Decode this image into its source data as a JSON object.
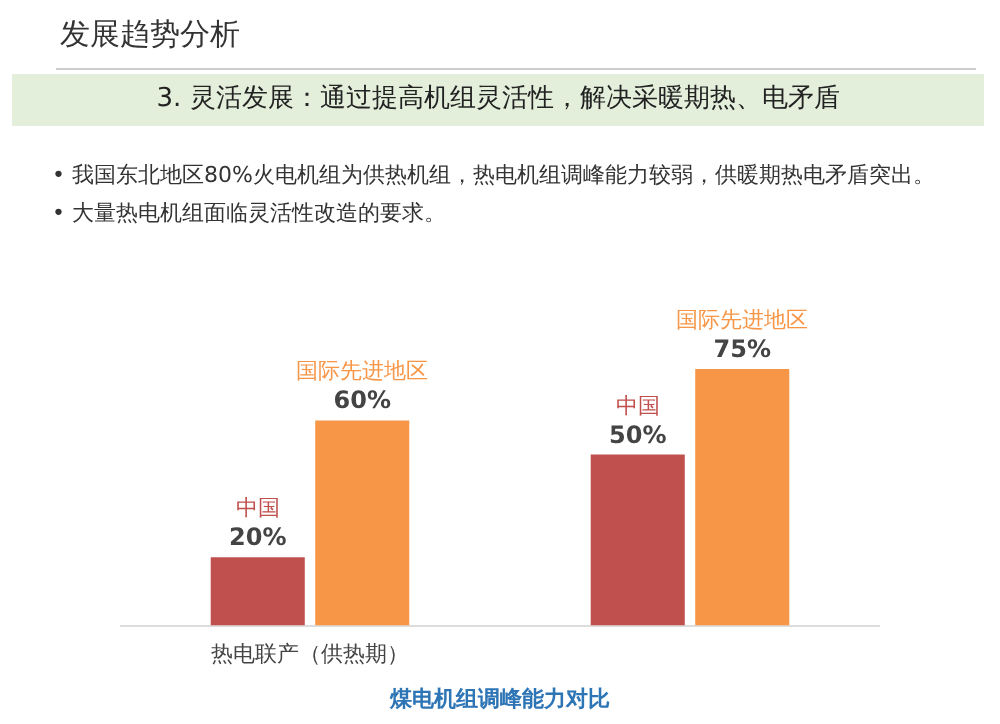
{
  "chart_data": {
    "type": "bar",
    "title": "发展趋势分析",
    "subtitle": "3. 灵活发展：通过提高机组灵活性，解决采暖期热、电矛盾",
    "annotations": [
      "• 我国东北地区80%火电机组为供热机组，热电机组调峰能力较弱，供暖期热电矛盾突出。",
      "• 大量热电机组面临灵活性改造的要求。",
      "煤电机组调峰能力对比"
    ],
    "categories": [
      "热电联产（供热期）",
      null
    ],
    "series": [
      {
        "name": "中国",
        "color": "#c0504d",
        "values": [
          20,
          50
        ],
        "value_labels": [
          "20%",
          "50%"
        ]
      },
      {
        "name": "国际先进地区",
        "color": "#f79646",
        "values": [
          60,
          75
        ],
        "value_labels": [
          "60%",
          "75%"
        ]
      }
    ],
    "legend": false,
    "grid": false
  }
}
